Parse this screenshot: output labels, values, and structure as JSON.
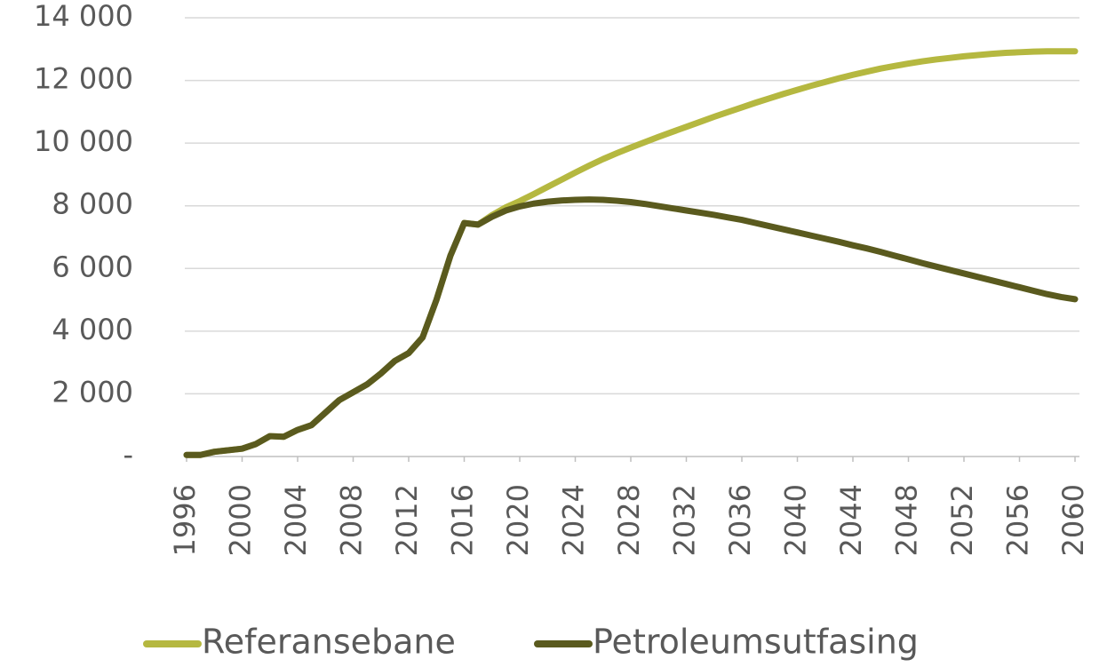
{
  "chart_data": {
    "type": "line",
    "x": [
      1996,
      1997,
      1998,
      1999,
      2000,
      2001,
      2002,
      2003,
      2004,
      2005,
      2006,
      2007,
      2008,
      2009,
      2010,
      2011,
      2012,
      2013,
      2014,
      2015,
      2016,
      2017,
      2018,
      2019,
      2020,
      2021,
      2022,
      2023,
      2024,
      2025,
      2026,
      2027,
      2028,
      2029,
      2030,
      2031,
      2032,
      2033,
      2034,
      2035,
      2036,
      2037,
      2038,
      2039,
      2040,
      2041,
      2042,
      2043,
      2044,
      2045,
      2046,
      2047,
      2048,
      2049,
      2050,
      2051,
      2052,
      2053,
      2054,
      2055,
      2056,
      2057,
      2058,
      2059,
      2060
    ],
    "series": [
      {
        "name": "Referansebane",
        "color": "#b5b840",
        "values": [
          50,
          50,
          150,
          200,
          250,
          400,
          650,
          630,
          850,
          1000,
          1400,
          1800,
          2050,
          2300,
          2650,
          3050,
          3300,
          3800,
          5000,
          6400,
          7450,
          7400,
          7700,
          7950,
          8150,
          8370,
          8600,
          8830,
          9060,
          9280,
          9490,
          9680,
          9860,
          10030,
          10200,
          10360,
          10520,
          10680,
          10840,
          10990,
          11140,
          11290,
          11430,
          11570,
          11700,
          11830,
          11950,
          12070,
          12180,
          12280,
          12380,
          12460,
          12540,
          12610,
          12670,
          12720,
          12770,
          12810,
          12850,
          12880,
          12900,
          12920,
          12930,
          12930,
          12930
        ]
      },
      {
        "name": "Petroleumsutfasing",
        "color": "#5a5a1e",
        "values": [
          50,
          50,
          150,
          200,
          250,
          400,
          650,
          630,
          850,
          1000,
          1400,
          1800,
          2050,
          2300,
          2650,
          3050,
          3300,
          3800,
          5000,
          6400,
          7450,
          7400,
          7650,
          7850,
          7980,
          8070,
          8130,
          8170,
          8190,
          8200,
          8190,
          8160,
          8120,
          8060,
          7990,
          7920,
          7850,
          7780,
          7710,
          7630,
          7550,
          7450,
          7350,
          7250,
          7150,
          7050,
          6950,
          6850,
          6740,
          6640,
          6530,
          6410,
          6290,
          6170,
          6060,
          5950,
          5840,
          5730,
          5620,
          5510,
          5400,
          5290,
          5180,
          5090,
          5020
        ]
      }
    ],
    "xlim": [
      1996,
      2060
    ],
    "xticks": [
      1996,
      2000,
      2004,
      2008,
      2012,
      2016,
      2020,
      2024,
      2028,
      2032,
      2036,
      2040,
      2044,
      2048,
      2052,
      2056,
      2060
    ],
    "ylim": [
      0,
      14000
    ],
    "yticks": [
      {
        "value": 0,
        "label": "-"
      },
      {
        "value": 2000,
        "label": "2 000"
      },
      {
        "value": 4000,
        "label": "4 000"
      },
      {
        "value": 6000,
        "label": "6 000"
      },
      {
        "value": 8000,
        "label": "8 000"
      },
      {
        "value": 10000,
        "label": "10 000"
      },
      {
        "value": 12000,
        "label": "12 000"
      },
      {
        "value": 14000,
        "label": "14 000"
      }
    ],
    "grid": true,
    "legend": "bottom"
  }
}
